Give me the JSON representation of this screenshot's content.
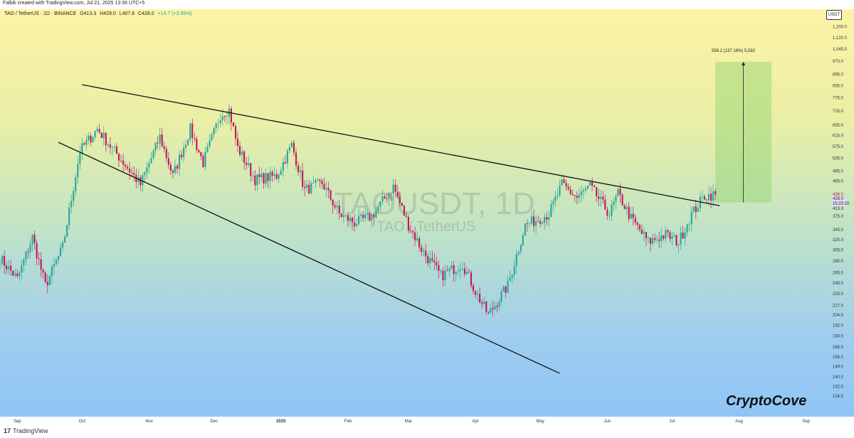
{
  "header": {
    "attribution": "Falbik created with TradingView.com, Jul 21, 2025 13:36 UTC+5",
    "symbol": "TAO / TetherUS · 1D · BINANCE",
    "open": "O413.3",
    "high": "H429.0",
    "low": "L407.8",
    "close": "C428.0",
    "change": "+14.7 (+3.56%)"
  },
  "currency_label": "USDT",
  "watermark": {
    "ticker": "TAOUSDT, 1D",
    "pair": "TAO / TetherUS"
  },
  "brand_text": "CryptoCove",
  "footer_logo": "TradingView",
  "price_tags": {
    "current": "428.0",
    "countdown": "15:23:20",
    "level_a": "436.0",
    "level_b": "413.3"
  },
  "measure_label": "559.2 (137.18%) 5,592",
  "colors": {
    "up": "#26a69a",
    "down": "#c2185b",
    "trendline": "#111111",
    "target_box": "#8fd36f"
  },
  "chart_data": {
    "type": "candlestick",
    "title": "",
    "xlabel": "",
    "ylabel": "USDT",
    "x_ticks": [
      "Sep",
      "Oct",
      "Nov",
      "Dec",
      "2025",
      "Feb",
      "Mar",
      "Apr",
      "May",
      "Jun",
      "Jul",
      "Aug",
      "Sep"
    ],
    "y_ticks": [
      "1,200.0",
      "1,120.0",
      "1,045.0",
      "970.0",
      "895.0",
      "835.0",
      "775.0",
      "715.0",
      "655.0",
      "615.0",
      "575.0",
      "535.0",
      "495.0",
      "465.0",
      "405.0",
      "375.0",
      "345.0",
      "325.0",
      "305.0",
      "285.0",
      "265.0",
      "249.0",
      "233.0",
      "217.0",
      "204.5",
      "192.0",
      "180.0",
      "168.0",
      "158.0",
      "149.0",
      "140.0",
      "132.0",
      "124.5"
    ],
    "log_scale": true,
    "anchors": [
      [
        "2024-08-24",
        290
      ],
      [
        "2024-09-01",
        255
      ],
      [
        "2024-09-08",
        330
      ],
      [
        "2024-09-14",
        245
      ],
      [
        "2024-09-22",
        310
      ],
      [
        "2024-09-30",
        560
      ],
      [
        "2024-10-08",
        640
      ],
      [
        "2024-10-18",
        540
      ],
      [
        "2024-10-28",
        455
      ],
      [
        "2024-11-06",
        610
      ],
      [
        "2024-11-12",
        480
      ],
      [
        "2024-11-20",
        640
      ],
      [
        "2024-11-26",
        520
      ],
      [
        "2024-12-04",
        700
      ],
      [
        "2024-12-08",
        720
      ],
      [
        "2024-12-12",
        570
      ],
      [
        "2024-12-20",
        470
      ],
      [
        "2024-12-30",
        480
      ],
      [
        "2025-01-06",
        580
      ],
      [
        "2025-01-12",
        440
      ],
      [
        "2025-01-20",
        460
      ],
      [
        "2025-01-28",
        380
      ],
      [
        "2025-02-04",
        360
      ],
      [
        "2025-02-12",
        375
      ],
      [
        "2025-02-22",
        450
      ],
      [
        "2025-03-01",
        355
      ],
      [
        "2025-03-08",
        300
      ],
      [
        "2025-03-16",
        260
      ],
      [
        "2025-03-26",
        280
      ],
      [
        "2025-04-02",
        230
      ],
      [
        "2025-04-07",
        205
      ],
      [
        "2025-04-16",
        245
      ],
      [
        "2025-04-24",
        355
      ],
      [
        "2025-05-05",
        380
      ],
      [
        "2025-05-11",
        455
      ],
      [
        "2025-05-18",
        420
      ],
      [
        "2025-05-24",
        450
      ],
      [
        "2025-06-02",
        380
      ],
      [
        "2025-06-06",
        430
      ],
      [
        "2025-06-12",
        370
      ],
      [
        "2025-06-20",
        320
      ],
      [
        "2025-06-28",
        335
      ],
      [
        "2025-07-04",
        320
      ],
      [
        "2025-07-10",
        380
      ],
      [
        "2025-07-16",
        425
      ],
      [
        "2025-07-21",
        428
      ]
    ],
    "date_range": [
      "2024-08-24",
      "2025-09-10"
    ],
    "price_range": [
      115,
      1250
    ],
    "trendlines": [
      {
        "name": "upper",
        "from": [
          "2024-10-01",
          840
        ],
        "to": [
          "2025-07-23",
          400
        ]
      },
      {
        "name": "lower",
        "from": [
          "2024-09-20",
          590
        ],
        "to": [
          "2025-05-10",
          143
        ]
      }
    ],
    "projection": {
      "from_date": "2025-07-21",
      "to_date": "2025-08-16",
      "low": 408,
      "high": 967
    }
  }
}
